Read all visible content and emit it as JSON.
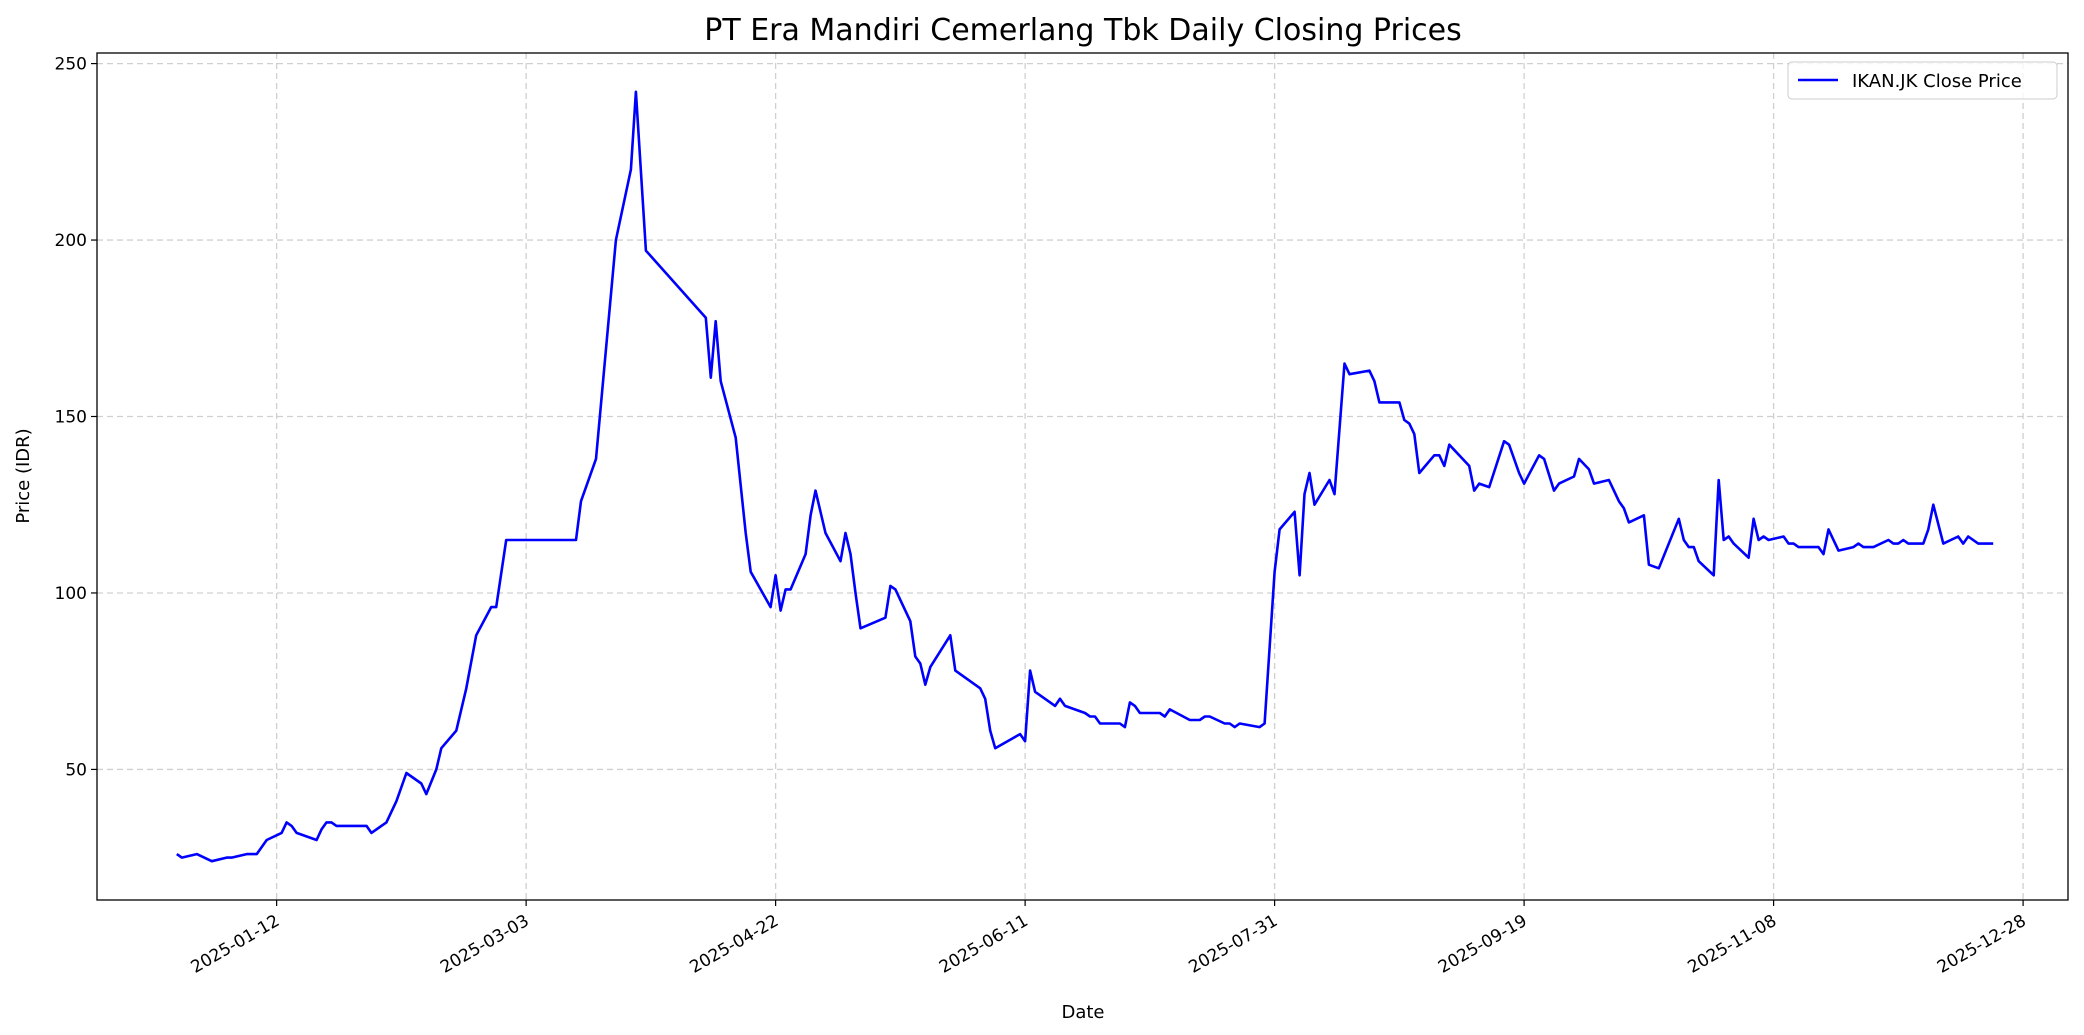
{
  "chart_data": {
    "type": "line",
    "title": "PT Era Mandiri Cemerlang Tbk Daily Closing Prices",
    "xlabel": "Date",
    "ylabel": "Price (IDR)",
    "x_ticks": [
      "2025-01-12",
      "2025-03-03",
      "2025-04-22",
      "2025-06-11",
      "2025-07-31",
      "2025-09-19",
      "2025-11-08",
      "2025-12-28"
    ],
    "y_ticks": [
      50,
      100,
      150,
      200,
      250
    ],
    "ylim": [
      13,
      253
    ],
    "xlim": [
      "2024-12-07",
      "2026-01-06"
    ],
    "grid": true,
    "legend_position": "top-right",
    "series": [
      {
        "name": "IKAN.JK Close Price",
        "color": "#0000ff",
        "points": [
          [
            "2024-12-23",
            26
          ],
          [
            "2024-12-24",
            25
          ],
          [
            "2024-12-27",
            26
          ],
          [
            "2024-12-30",
            24
          ],
          [
            "2025-01-02",
            25
          ],
          [
            "2025-01-03",
            25
          ],
          [
            "2025-01-06",
            26
          ],
          [
            "2025-01-08",
            26
          ],
          [
            "2025-01-10",
            30
          ],
          [
            "2025-01-13",
            32
          ],
          [
            "2025-01-14",
            35
          ],
          [
            "2025-01-15",
            34
          ],
          [
            "2025-01-16",
            32
          ],
          [
            "2025-01-20",
            30
          ],
          [
            "2025-01-21",
            33
          ],
          [
            "2025-01-22",
            35
          ],
          [
            "2025-01-23",
            35
          ],
          [
            "2025-01-24",
            34
          ],
          [
            "2025-01-30",
            34
          ],
          [
            "2025-01-31",
            32
          ],
          [
            "2025-02-03",
            35
          ],
          [
            "2025-02-05",
            41
          ],
          [
            "2025-02-07",
            49
          ],
          [
            "2025-02-10",
            46
          ],
          [
            "2025-02-11",
            43
          ],
          [
            "2025-02-13",
            50
          ],
          [
            "2025-02-14",
            56
          ],
          [
            "2025-02-17",
            61
          ],
          [
            "2025-02-19",
            73
          ],
          [
            "2025-02-21",
            88
          ],
          [
            "2025-02-24",
            96
          ],
          [
            "2025-02-25",
            96
          ],
          [
            "2025-02-27",
            115
          ],
          [
            "2025-03-13",
            115
          ],
          [
            "2025-03-14",
            126
          ],
          [
            "2025-03-17",
            138
          ],
          [
            "2025-03-21",
            200
          ],
          [
            "2025-03-24",
            220
          ],
          [
            "2025-03-25",
            242
          ],
          [
            "2025-03-27",
            197
          ],
          [
            "2025-04-08",
            178
          ],
          [
            "2025-04-09",
            161
          ],
          [
            "2025-04-10",
            177
          ],
          [
            "2025-04-11",
            160
          ],
          [
            "2025-04-14",
            144
          ],
          [
            "2025-04-16",
            117
          ],
          [
            "2025-04-17",
            106
          ],
          [
            "2025-04-21",
            96
          ],
          [
            "2025-04-22",
            105
          ],
          [
            "2025-04-23",
            95
          ],
          [
            "2025-04-24",
            101
          ],
          [
            "2025-04-25",
            101
          ],
          [
            "2025-04-28",
            111
          ],
          [
            "2025-04-29",
            122
          ],
          [
            "2025-04-30",
            129
          ],
          [
            "2025-05-02",
            117
          ],
          [
            "2025-05-05",
            109
          ],
          [
            "2025-05-06",
            117
          ],
          [
            "2025-05-07",
            111
          ],
          [
            "2025-05-08",
            100
          ],
          [
            "2025-05-09",
            90
          ],
          [
            "2025-05-14",
            93
          ],
          [
            "2025-05-15",
            102
          ],
          [
            "2025-05-16",
            101
          ],
          [
            "2025-05-19",
            92
          ],
          [
            "2025-05-20",
            82
          ],
          [
            "2025-05-21",
            80
          ],
          [
            "2025-05-22",
            74
          ],
          [
            "2025-05-23",
            79
          ],
          [
            "2025-05-27",
            88
          ],
          [
            "2025-05-28",
            78
          ],
          [
            "2025-06-02",
            73
          ],
          [
            "2025-06-03",
            70
          ],
          [
            "2025-06-04",
            61
          ],
          [
            "2025-06-05",
            56
          ],
          [
            "2025-06-10",
            60
          ],
          [
            "2025-06-11",
            58
          ],
          [
            "2025-06-12",
            78
          ],
          [
            "2025-06-13",
            72
          ],
          [
            "2025-06-17",
            68
          ],
          [
            "2025-06-18",
            70
          ],
          [
            "2025-06-19",
            68
          ],
          [
            "2025-06-23",
            66
          ],
          [
            "2025-06-24",
            65
          ],
          [
            "2025-06-25",
            65
          ],
          [
            "2025-06-26",
            63
          ],
          [
            "2025-06-30",
            63
          ],
          [
            "2025-07-01",
            62
          ],
          [
            "2025-07-02",
            69
          ],
          [
            "2025-07-03",
            68
          ],
          [
            "2025-07-04",
            66
          ],
          [
            "2025-07-08",
            66
          ],
          [
            "2025-07-09",
            65
          ],
          [
            "2025-07-10",
            67
          ],
          [
            "2025-07-14",
            64
          ],
          [
            "2025-07-16",
            64
          ],
          [
            "2025-07-17",
            65
          ],
          [
            "2025-07-18",
            65
          ],
          [
            "2025-07-21",
            63
          ],
          [
            "2025-07-22",
            63
          ],
          [
            "2025-07-23",
            62
          ],
          [
            "2025-07-24",
            63
          ],
          [
            "2025-07-28",
            62
          ],
          [
            "2025-07-29",
            63
          ],
          [
            "2025-07-31",
            106
          ],
          [
            "2025-08-01",
            118
          ],
          [
            "2025-08-04",
            123
          ],
          [
            "2025-08-05",
            105
          ],
          [
            "2025-08-06",
            128
          ],
          [
            "2025-08-07",
            134
          ],
          [
            "2025-08-08",
            125
          ],
          [
            "2025-08-11",
            132
          ],
          [
            "2025-08-12",
            128
          ],
          [
            "2025-08-14",
            165
          ],
          [
            "2025-08-15",
            162
          ],
          [
            "2025-08-19",
            163
          ],
          [
            "2025-08-20",
            160
          ],
          [
            "2025-08-21",
            154
          ],
          [
            "2025-08-25",
            154
          ],
          [
            "2025-08-26",
            149
          ],
          [
            "2025-08-27",
            148
          ],
          [
            "2025-08-28",
            145
          ],
          [
            "2025-08-29",
            134
          ],
          [
            "2025-09-01",
            139
          ],
          [
            "2025-09-02",
            139
          ],
          [
            "2025-09-03",
            136
          ],
          [
            "2025-09-04",
            142
          ],
          [
            "2025-09-08",
            136
          ],
          [
            "2025-09-09",
            129
          ],
          [
            "2025-09-10",
            131
          ],
          [
            "2025-09-12",
            130
          ],
          [
            "2025-09-15",
            143
          ],
          [
            "2025-09-16",
            142
          ],
          [
            "2025-09-18",
            134
          ],
          [
            "2025-09-19",
            131
          ],
          [
            "2025-09-22",
            139
          ],
          [
            "2025-09-23",
            138
          ],
          [
            "2025-09-25",
            129
          ],
          [
            "2025-09-26",
            131
          ],
          [
            "2025-09-29",
            133
          ],
          [
            "2025-09-30",
            138
          ],
          [
            "2025-10-02",
            135
          ],
          [
            "2025-10-03",
            131
          ],
          [
            "2025-10-06",
            132
          ],
          [
            "2025-10-07",
            129
          ],
          [
            "2025-10-08",
            126
          ],
          [
            "2025-10-09",
            124
          ],
          [
            "2025-10-10",
            120
          ],
          [
            "2025-10-13",
            122
          ],
          [
            "2025-10-14",
            108
          ],
          [
            "2025-10-16",
            107
          ],
          [
            "2025-10-20",
            121
          ],
          [
            "2025-10-21",
            115
          ],
          [
            "2025-10-22",
            113
          ],
          [
            "2025-10-23",
            113
          ],
          [
            "2025-10-24",
            109
          ],
          [
            "2025-10-27",
            105
          ],
          [
            "2025-10-28",
            132
          ],
          [
            "2025-10-29",
            115
          ],
          [
            "2025-10-30",
            116
          ],
          [
            "2025-10-31",
            114
          ],
          [
            "2025-11-03",
            110
          ],
          [
            "2025-11-04",
            121
          ],
          [
            "2025-11-05",
            115
          ],
          [
            "2025-11-06",
            116
          ],
          [
            "2025-11-07",
            115
          ],
          [
            "2025-11-10",
            116
          ],
          [
            "2025-11-11",
            114
          ],
          [
            "2025-11-12",
            114
          ],
          [
            "2025-11-13",
            113
          ],
          [
            "2025-11-17",
            113
          ],
          [
            "2025-11-18",
            111
          ],
          [
            "2025-11-19",
            118
          ],
          [
            "2025-11-21",
            112
          ],
          [
            "2025-11-24",
            113
          ],
          [
            "2025-11-25",
            114
          ],
          [
            "2025-11-26",
            113
          ],
          [
            "2025-11-28",
            113
          ],
          [
            "2025-12-01",
            115
          ],
          [
            "2025-12-02",
            114
          ],
          [
            "2025-12-03",
            114
          ],
          [
            "2025-12-04",
            115
          ],
          [
            "2025-12-05",
            114
          ],
          [
            "2025-12-08",
            114
          ],
          [
            "2025-12-09",
            118
          ],
          [
            "2025-12-10",
            125
          ],
          [
            "2025-12-12",
            114
          ],
          [
            "2025-12-15",
            116
          ],
          [
            "2025-12-16",
            114
          ],
          [
            "2025-12-17",
            116
          ],
          [
            "2025-12-19",
            114
          ],
          [
            "2025-12-22",
            114
          ]
        ]
      }
    ]
  }
}
